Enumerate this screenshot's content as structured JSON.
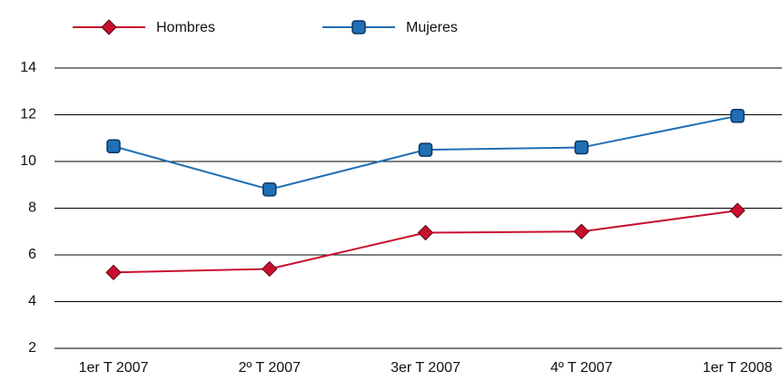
{
  "chart_data": {
    "type": "line",
    "categories": [
      "1er T 2007",
      "2º T 2007",
      "3er T 2007",
      "4º T 2007",
      "1er T 2008"
    ],
    "series": [
      {
        "name": "Hombres",
        "color": "#c8102e",
        "marker": "diamond",
        "values": [
          5.25,
          5.4,
          6.95,
          7.0,
          7.9
        ]
      },
      {
        "name": "Mujeres",
        "color": "#1f6fb5",
        "marker": "square",
        "values": [
          10.65,
          8.8,
          10.5,
          10.6,
          11.95
        ]
      }
    ],
    "ylim": [
      2,
      14
    ],
    "yticks": [
      2,
      4,
      6,
      8,
      10,
      12,
      14
    ],
    "grid": true
  }
}
